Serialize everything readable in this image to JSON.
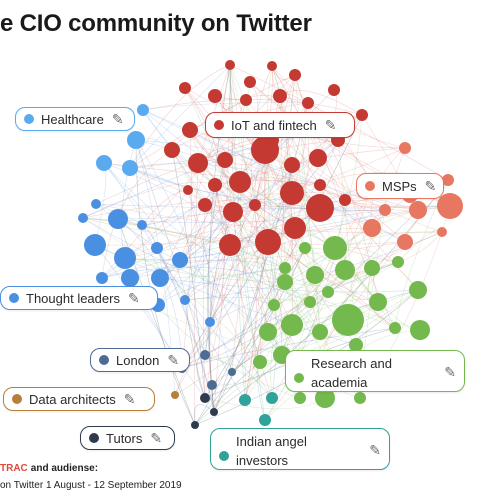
{
  "title": "e CIO community on Twitter",
  "groups": [
    {
      "label": "Healthcare",
      "color": "#5aaaf0"
    },
    {
      "label": "IoT and fintech",
      "color": "#c43a32"
    },
    {
      "label": "MSPs",
      "color": "#e77760"
    },
    {
      "label": "Thought leaders",
      "color": "#4a90e2"
    },
    {
      "label": "London",
      "color": "#4d6c93"
    },
    {
      "label": "Research and academia",
      "color": "#74b94d"
    },
    {
      "label": "Data architects",
      "color": "#b5803a"
    },
    {
      "label": "Tutors",
      "color": "#2f3b4c"
    },
    {
      "label": "Indian angel investors",
      "color": "#2fa39a"
    }
  ],
  "edit_icon": "pencil-icon",
  "footer": {
    "brand_trac": "TRAC",
    "brand_audiense": "and audiense:",
    "source": "on Twitter 1 August - 12 September 2019"
  }
}
